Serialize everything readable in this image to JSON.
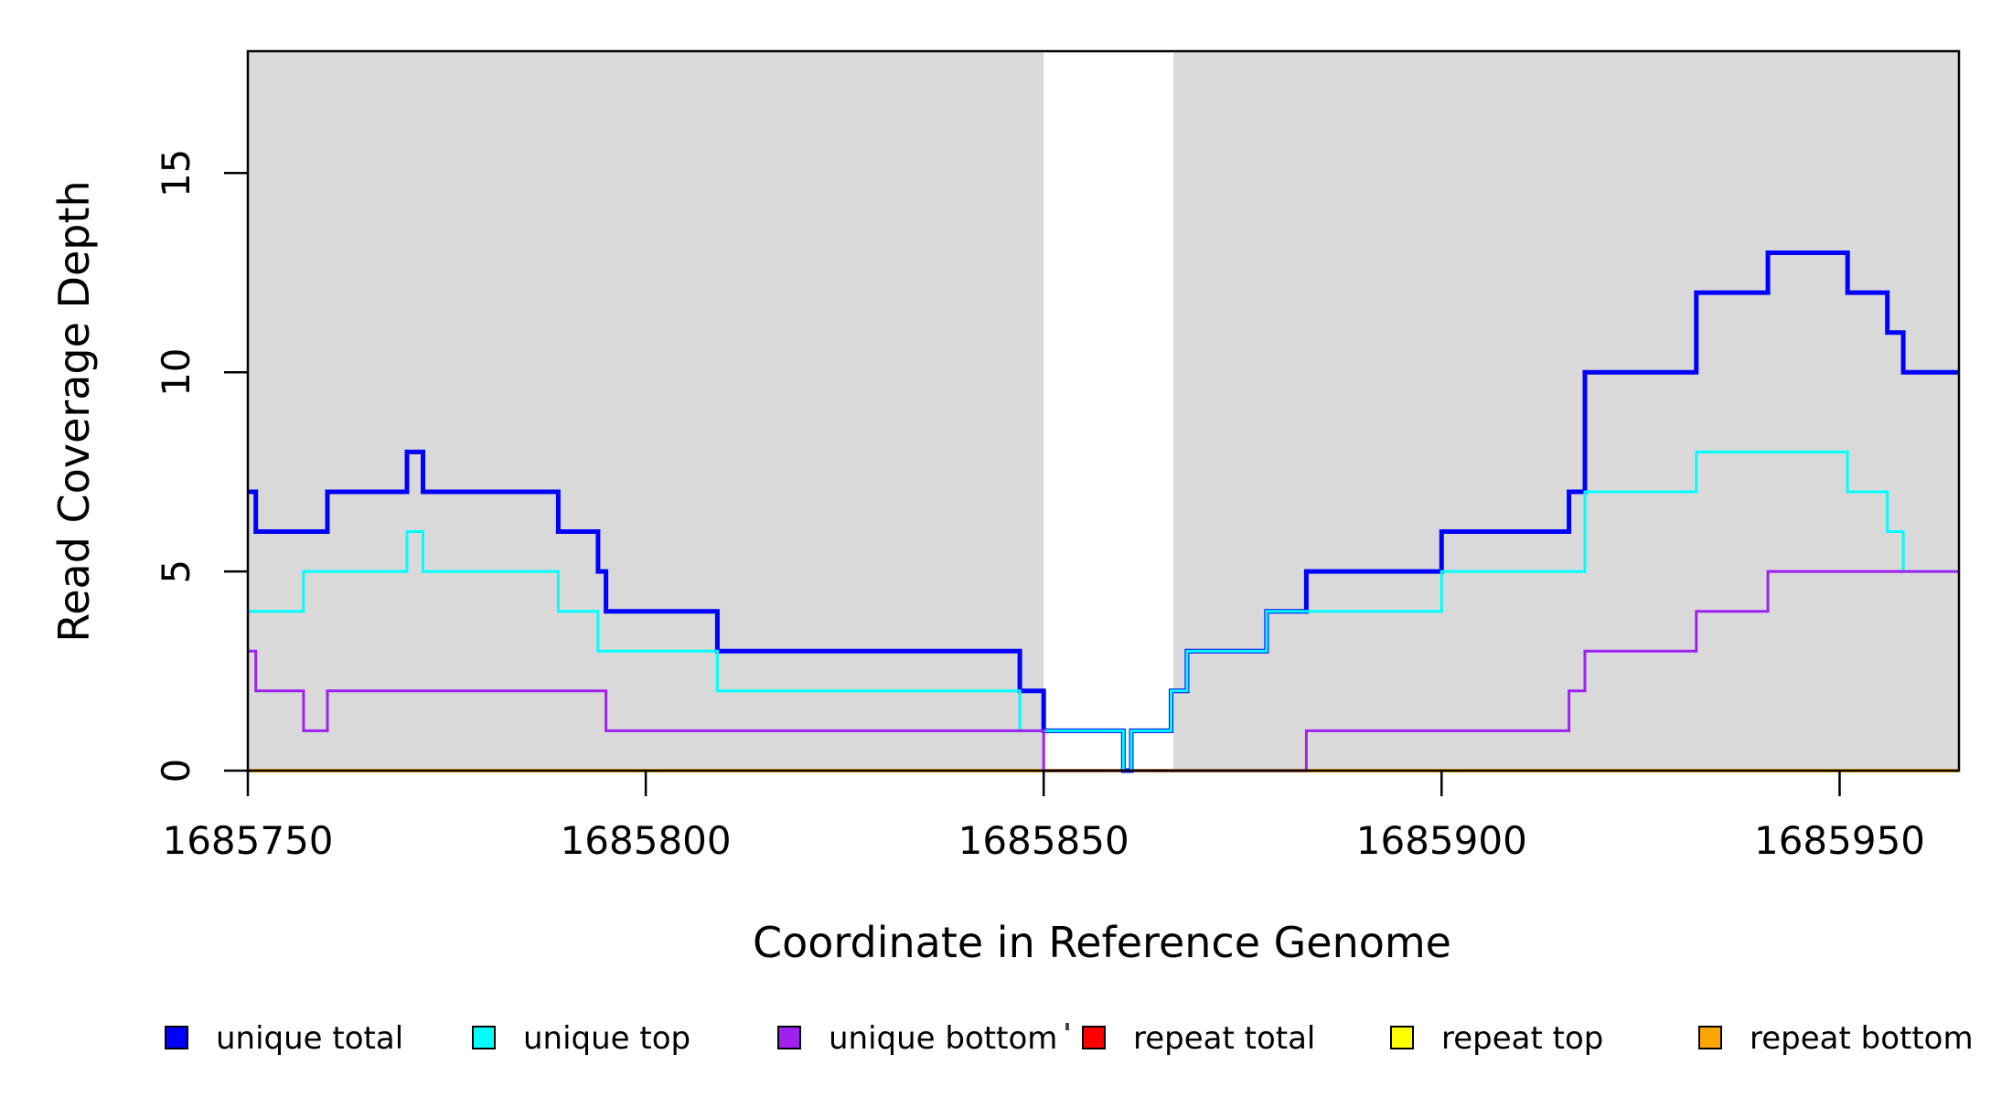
{
  "figure": {
    "background": "#ffffff",
    "panel_background": "#d9d9d9",
    "box_color": "#000000"
  },
  "chart_data": {
    "type": "line",
    "subtype": "step-coverage-plot",
    "title": "",
    "xlabel": "Coordinate in Reference Genome",
    "ylabel": "Read Coverage Depth",
    "xlim": [
      1685750,
      1685965
    ],
    "ylim": [
      0,
      18.06
    ],
    "grid": "off",
    "legend_position": "bottom",
    "x_ticks": [
      1685750,
      1685800,
      1685850,
      1685900,
      1685950
    ],
    "x_tick_labels": [
      "1685750",
      "1685800",
      "1685850",
      "1685900",
      "1685950"
    ],
    "y_ticks": [
      0,
      5,
      10,
      15
    ],
    "y_tick_labels": [
      "0",
      "5",
      "10",
      "15"
    ],
    "shaded_regions": [
      {
        "x0": 1685750,
        "x1": 1685850
      },
      {
        "x0": 1685866.3,
        "x1": 1685965
      }
    ],
    "series": [
      {
        "name": "unique total",
        "color": "#0000ff",
        "line_width": 5,
        "steps": [
          [
            1685750,
            7
          ],
          [
            1685751,
            6
          ],
          [
            1685760,
            7
          ],
          [
            1685770,
            8
          ],
          [
            1685772,
            7
          ],
          [
            1685789,
            6
          ],
          [
            1685794,
            5
          ],
          [
            1685795,
            4
          ],
          [
            1685809,
            3
          ],
          [
            1685847,
            2
          ],
          [
            1685850,
            1
          ],
          [
            1685860,
            0
          ],
          [
            1685861,
            1
          ],
          [
            1685866,
            2
          ],
          [
            1685868,
            3
          ],
          [
            1685878,
            4
          ],
          [
            1685883,
            5
          ],
          [
            1685900,
            6
          ],
          [
            1685916,
            7
          ],
          [
            1685918,
            10
          ],
          [
            1685932,
            12
          ],
          [
            1685941,
            13
          ],
          [
            1685951,
            12
          ],
          [
            1685956,
            11
          ],
          [
            1685958,
            10
          ]
        ]
      },
      {
        "name": "unique top",
        "color": "#00ffff",
        "line_width": 3,
        "steps": [
          [
            1685750,
            4
          ],
          [
            1685757,
            5
          ],
          [
            1685770,
            6
          ],
          [
            1685772,
            5
          ],
          [
            1685789,
            4
          ],
          [
            1685794,
            3
          ],
          [
            1685809,
            2
          ],
          [
            1685847,
            1
          ],
          [
            1685860,
            0
          ],
          [
            1685861,
            1
          ],
          [
            1685866,
            2
          ],
          [
            1685868,
            3
          ],
          [
            1685878,
            4
          ],
          [
            1685900,
            5
          ],
          [
            1685918,
            7
          ],
          [
            1685932,
            8
          ],
          [
            1685951,
            7
          ],
          [
            1685956,
            6
          ],
          [
            1685958,
            5
          ]
        ]
      },
      {
        "name": "unique bottom",
        "color": "#a020f0",
        "line_width": 3,
        "steps": [
          [
            1685750,
            3
          ],
          [
            1685751,
            2
          ],
          [
            1685757,
            1
          ],
          [
            1685760,
            2
          ],
          [
            1685795,
            1
          ],
          [
            1685850,
            0
          ],
          [
            1685883,
            1
          ],
          [
            1685916,
            2
          ],
          [
            1685918,
            3
          ],
          [
            1685932,
            4
          ],
          [
            1685941,
            5
          ]
        ]
      },
      {
        "name": "repeat total",
        "color": "#ff0000",
        "line_width": 3,
        "steps": [
          [
            1685750,
            0
          ]
        ]
      },
      {
        "name": "repeat top",
        "color": "#ffff00",
        "line_width": 3,
        "steps": [
          [
            1685750,
            0
          ]
        ]
      },
      {
        "name": "repeat bottom",
        "color": "#ffa500",
        "line_width": 4,
        "steps": [
          [
            1685750,
            0
          ]
        ]
      }
    ],
    "legend": [
      {
        "label": "unique total",
        "color": "#0000ff"
      },
      {
        "label": "unique top",
        "color": "#00ffff"
      },
      {
        "label": "unique bottom",
        "color": "#a020f0"
      },
      {
        "label": "repeat total",
        "color": "#ff0000"
      },
      {
        "label": "repeat top",
        "color": "#ffff00"
      },
      {
        "label": "repeat bottom",
        "color": "#ffa500"
      }
    ]
  }
}
